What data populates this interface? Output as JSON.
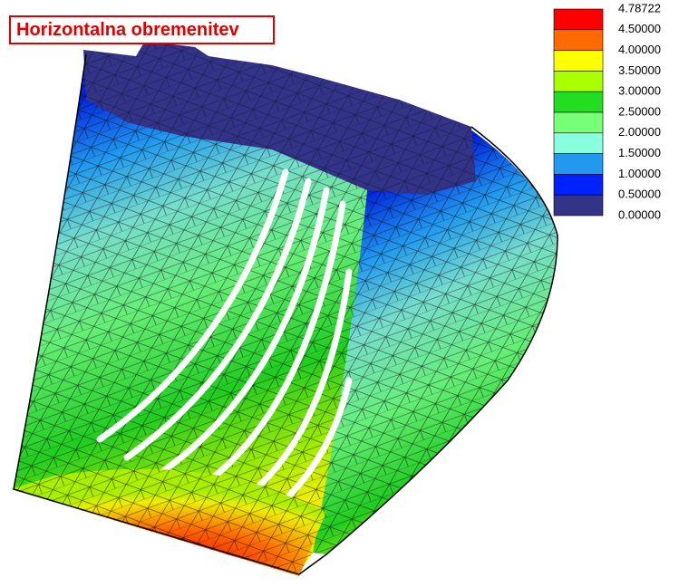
{
  "title": "Horizontalna obremenitev",
  "legend": {
    "labels": [
      "4.78722",
      "4.50000",
      "4.00000",
      "3.50000",
      "3.00000",
      "2.50000",
      "2.00000",
      "1.50000",
      "1.00000",
      "0.50000",
      "0.00000"
    ],
    "colors": [
      "#ff0000",
      "#ff6a00",
      "#ffff00",
      "#aaff00",
      "#22dd22",
      "#77ff77",
      "#88ffdd",
      "#2299ee",
      "#0022ff",
      "#333388"
    ]
  }
}
